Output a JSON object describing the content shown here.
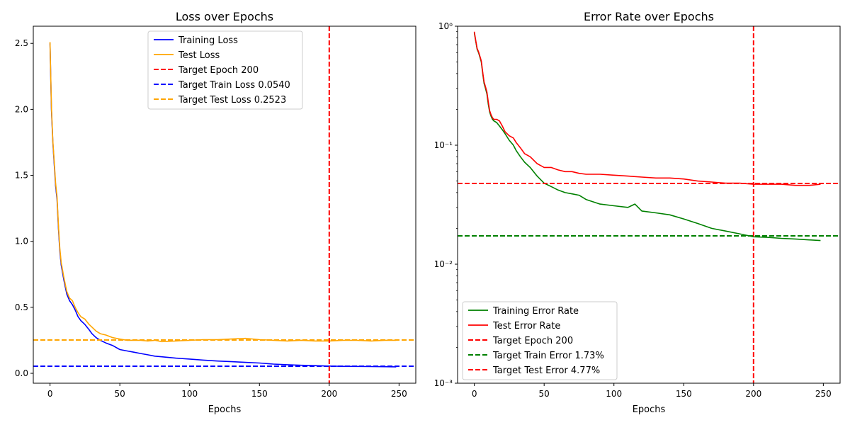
{
  "chart_data": [
    {
      "type": "line",
      "title": "Loss over Epochs",
      "xlabel": "Epochs",
      "ylabel": "",
      "xlim": [
        -12,
        262
      ],
      "ylim": [
        -0.075,
        2.63
      ],
      "yscale": "linear",
      "xticks": [
        0,
        50,
        100,
        150,
        200,
        250
      ],
      "xtick_labels": [
        "0",
        "50",
        "100",
        "150",
        "200",
        "250"
      ],
      "yticks": [
        0,
        0.5,
        1,
        1.5,
        2,
        2.5
      ],
      "ytick_labels": [
        "0.0",
        "0.5",
        "1.0",
        "1.5",
        "2.0",
        "2.5"
      ],
      "grid": false,
      "legend_position": "top-center",
      "series": [
        {
          "name": "Training Loss",
          "color": "#0000ff",
          "style": "solid",
          "x": [
            0,
            1,
            2,
            3,
            4,
            5,
            6,
            7,
            8,
            10,
            12,
            14,
            16,
            18,
            20,
            22,
            25,
            28,
            30,
            33,
            36,
            40,
            45,
            50,
            55,
            60,
            65,
            70,
            75,
            80,
            90,
            100,
            110,
            120,
            130,
            140,
            150,
            160,
            170,
            180,
            190,
            200,
            210,
            220,
            230,
            240,
            248
          ],
          "y": [
            2.5,
            2.0,
            1.75,
            1.58,
            1.42,
            1.32,
            1.1,
            0.93,
            0.82,
            0.7,
            0.6,
            0.55,
            0.52,
            0.48,
            0.43,
            0.4,
            0.37,
            0.33,
            0.3,
            0.27,
            0.25,
            0.23,
            0.21,
            0.18,
            0.17,
            0.16,
            0.15,
            0.14,
            0.13,
            0.125,
            0.115,
            0.108,
            0.1,
            0.093,
            0.088,
            0.083,
            0.078,
            0.07,
            0.065,
            0.061,
            0.058,
            0.055,
            0.053,
            0.052,
            0.051,
            0.05,
            0.049
          ]
        },
        {
          "name": "Test Loss",
          "color": "#ffa500",
          "style": "solid",
          "x": [
            0,
            1,
            2,
            3,
            4,
            5,
            6,
            7,
            8,
            10,
            12,
            14,
            16,
            18,
            20,
            22,
            25,
            28,
            30,
            33,
            36,
            40,
            45,
            50,
            55,
            60,
            65,
            70,
            75,
            80,
            90,
            100,
            110,
            120,
            130,
            140,
            150,
            160,
            170,
            180,
            190,
            200,
            210,
            220,
            230,
            240,
            248
          ],
          "y": [
            2.51,
            2.02,
            1.76,
            1.6,
            1.44,
            1.34,
            1.12,
            0.95,
            0.84,
            0.72,
            0.62,
            0.57,
            0.55,
            0.5,
            0.46,
            0.43,
            0.41,
            0.37,
            0.35,
            0.32,
            0.3,
            0.29,
            0.27,
            0.26,
            0.25,
            0.25,
            0.25,
            0.245,
            0.25,
            0.24,
            0.245,
            0.25,
            0.255,
            0.255,
            0.26,
            0.265,
            0.255,
            0.25,
            0.245,
            0.25,
            0.245,
            0.245,
            0.25,
            0.25,
            0.245,
            0.25,
            0.25
          ]
        },
        {
          "name": "Target Epoch 200",
          "color": "#ff0000",
          "style": "dashed",
          "orientation": "vertical",
          "value": 200
        },
        {
          "name": "Target Train Loss 0.0540",
          "color": "#0000ff",
          "style": "dashed",
          "orientation": "horizontal",
          "value": 0.054
        },
        {
          "name": "Target Test Loss 0.2523",
          "color": "#ffa500",
          "style": "dashed",
          "orientation": "horizontal",
          "value": 0.2523
        }
      ]
    },
    {
      "type": "line",
      "title": "Error Rate over Epochs",
      "xlabel": "Epochs",
      "ylabel": "",
      "xlim": [
        -12,
        262
      ],
      "ylim": [
        0.001,
        1
      ],
      "yscale": "log",
      "xticks": [
        0,
        50,
        100,
        150,
        200,
        250
      ],
      "xtick_labels": [
        "0",
        "50",
        "100",
        "150",
        "200",
        "250"
      ],
      "yticks": [
        0.001,
        0.01,
        0.1,
        1
      ],
      "ytick_labels": [
        "10⁻³",
        "10⁻²",
        "10⁻¹",
        "10⁰"
      ],
      "grid": false,
      "legend_position": "lower-left",
      "series": [
        {
          "name": "Training Error Rate",
          "color": "#008000",
          "style": "solid",
          "x": [
            0,
            1,
            2,
            3,
            4,
            5,
            6,
            7,
            8,
            9,
            10,
            11,
            12,
            13,
            14,
            16,
            18,
            20,
            22,
            25,
            28,
            30,
            33,
            36,
            40,
            45,
            50,
            55,
            60,
            65,
            70,
            75,
            80,
            90,
            100,
            110,
            115,
            120,
            130,
            140,
            150,
            160,
            170,
            180,
            190,
            200,
            210,
            220,
            230,
            240,
            248
          ],
          "y": [
            0.88,
            0.75,
            0.64,
            0.6,
            0.55,
            0.5,
            0.4,
            0.33,
            0.3,
            0.27,
            0.22,
            0.19,
            0.175,
            0.165,
            0.16,
            0.155,
            0.145,
            0.135,
            0.125,
            0.11,
            0.1,
            0.09,
            0.08,
            0.072,
            0.065,
            0.055,
            0.048,
            0.045,
            0.042,
            0.04,
            0.039,
            0.038,
            0.035,
            0.032,
            0.031,
            0.03,
            0.032,
            0.028,
            0.027,
            0.026,
            0.024,
            0.022,
            0.02,
            0.019,
            0.018,
            0.017,
            0.0168,
            0.0165,
            0.0163,
            0.016,
            0.0158
          ]
        },
        {
          "name": "Test Error Rate",
          "color": "#ff0000",
          "style": "solid",
          "x": [
            0,
            1,
            2,
            3,
            4,
            5,
            6,
            7,
            8,
            9,
            10,
            11,
            12,
            13,
            14,
            16,
            18,
            20,
            22,
            25,
            28,
            30,
            33,
            36,
            40,
            45,
            50,
            55,
            60,
            65,
            70,
            75,
            80,
            90,
            100,
            110,
            120,
            130,
            140,
            150,
            160,
            170,
            180,
            190,
            200,
            210,
            220,
            230,
            240,
            248
          ],
          "y": [
            0.9,
            0.76,
            0.65,
            0.61,
            0.56,
            0.51,
            0.41,
            0.34,
            0.31,
            0.28,
            0.23,
            0.195,
            0.18,
            0.17,
            0.165,
            0.165,
            0.16,
            0.145,
            0.13,
            0.12,
            0.115,
            0.105,
            0.095,
            0.085,
            0.08,
            0.07,
            0.065,
            0.065,
            0.062,
            0.06,
            0.06,
            0.058,
            0.057,
            0.057,
            0.056,
            0.055,
            0.054,
            0.053,
            0.053,
            0.052,
            0.05,
            0.049,
            0.048,
            0.048,
            0.047,
            0.047,
            0.047,
            0.046,
            0.046,
            0.047
          ]
        },
        {
          "name": "Target Epoch 200",
          "color": "#ff0000",
          "style": "dashed",
          "orientation": "vertical",
          "value": 200
        },
        {
          "name": "Target Train Error 1.73%",
          "color": "#008000",
          "style": "dashed",
          "orientation": "horizontal",
          "value": 0.0173
        },
        {
          "name": "Target Test Error 4.77%",
          "color": "#ff0000",
          "style": "dashed",
          "orientation": "horizontal",
          "value": 0.0477
        }
      ]
    }
  ]
}
